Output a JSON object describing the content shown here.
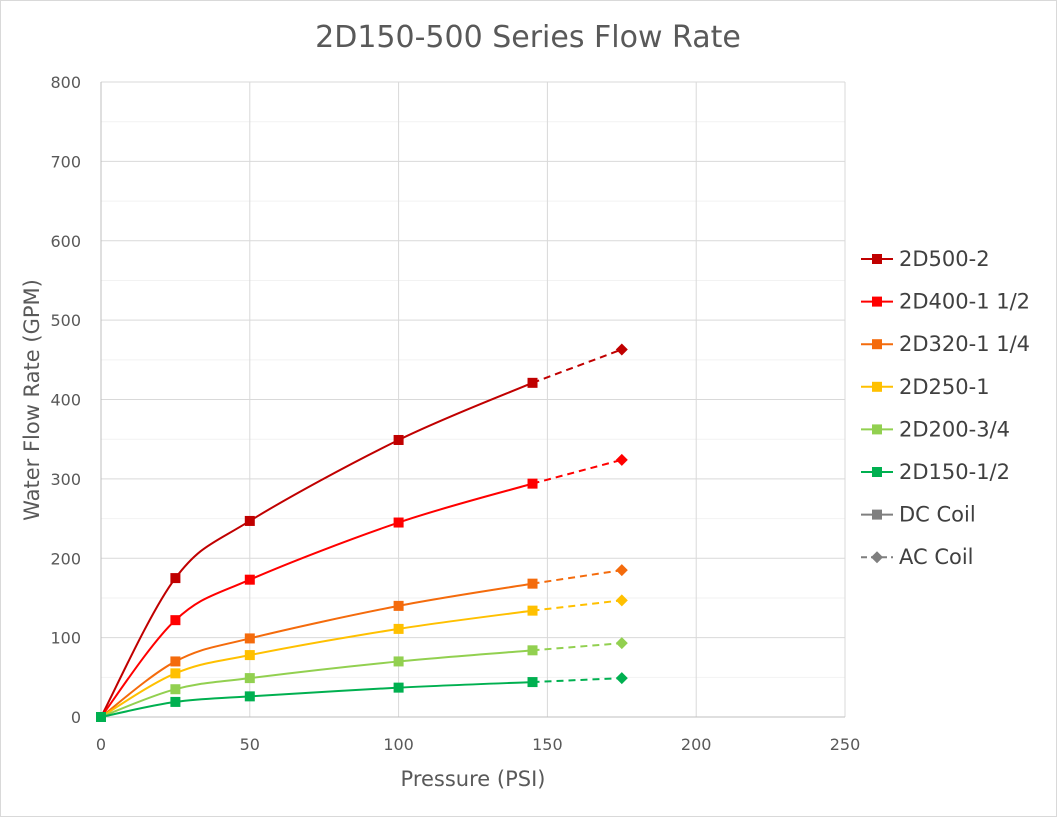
{
  "chart_data": {
    "type": "scatter",
    "title": "2D150-500 Series Flow Rate",
    "xlabel": "Pressure (PSI)",
    "ylabel": "Water Flow Rate (GPM)",
    "xlim": [
      0,
      250
    ],
    "ylim": [
      0,
      800
    ],
    "x_ticks": [
      0,
      50,
      100,
      150,
      200,
      250
    ],
    "y_ticks": [
      0,
      100,
      200,
      300,
      400,
      500,
      600,
      700,
      800
    ],
    "grid": true,
    "minor_y_grid": true,
    "legend_position": "right",
    "series": [
      {
        "name": "2D500-2",
        "color": "#C00000",
        "dc_coil": {
          "x": [
            0,
            25,
            50,
            100,
            145
          ],
          "y": [
            0,
            175,
            247,
            349,
            421
          ]
        },
        "ac_coil": {
          "x": [
            145,
            175
          ],
          "y": [
            421,
            463
          ]
        }
      },
      {
        "name": "2D400-1 1/2",
        "color": "#FF0000",
        "dc_coil": {
          "x": [
            0,
            25,
            50,
            100,
            145
          ],
          "y": [
            0,
            122,
            173,
            245,
            294
          ]
        },
        "ac_coil": {
          "x": [
            145,
            175
          ],
          "y": [
            294,
            324
          ]
        }
      },
      {
        "name": "2D320-1 1/4",
        "color": "#F46B0C",
        "dc_coil": {
          "x": [
            0,
            25,
            50,
            100,
            145
          ],
          "y": [
            0,
            70,
            99,
            140,
            168
          ]
        },
        "ac_coil": {
          "x": [
            145,
            175
          ],
          "y": [
            168,
            185
          ]
        }
      },
      {
        "name": "2D250-1",
        "color": "#FFC000",
        "dc_coil": {
          "x": [
            0,
            25,
            50,
            100,
            145
          ],
          "y": [
            0,
            55,
            78,
            111,
            134
          ]
        },
        "ac_coil": {
          "x": [
            145,
            175
          ],
          "y": [
            134,
            147
          ]
        }
      },
      {
        "name": "2D200-3/4",
        "color": "#92D050",
        "dc_coil": {
          "x": [
            0,
            25,
            50,
            100,
            145
          ],
          "y": [
            0,
            35,
            49,
            70,
            84
          ]
        },
        "ac_coil": {
          "x": [
            145,
            175
          ],
          "y": [
            84,
            93
          ]
        }
      },
      {
        "name": "2D150-1/2",
        "color": "#00B050",
        "dc_coil": {
          "x": [
            0,
            25,
            50,
            100,
            145
          ],
          "y": [
            0,
            19,
            26,
            37,
            44
          ]
        },
        "ac_coil": {
          "x": [
            145,
            175
          ],
          "y": [
            44,
            49
          ]
        }
      }
    ],
    "legend_entries": [
      {
        "label": "2D500-2",
        "color": "#C00000",
        "marker": "square",
        "dash": false
      },
      {
        "label": "2D400-1 1/2",
        "color": "#FF0000",
        "marker": "square",
        "dash": false
      },
      {
        "label": "2D320-1 1/4",
        "color": "#F46B0C",
        "marker": "square",
        "dash": false
      },
      {
        "label": "2D250-1",
        "color": "#FFC000",
        "marker": "square",
        "dash": false
      },
      {
        "label": "2D200-3/4",
        "color": "#92D050",
        "marker": "square",
        "dash": false
      },
      {
        "label": "2D150-1/2",
        "color": "#00B050",
        "marker": "square",
        "dash": false
      },
      {
        "label": "DC Coil",
        "color": "#7F7F7F",
        "marker": "square",
        "dash": false
      },
      {
        "label": "AC Coil",
        "color": "#7F7F7F",
        "marker": "diamond",
        "dash": true
      }
    ]
  }
}
